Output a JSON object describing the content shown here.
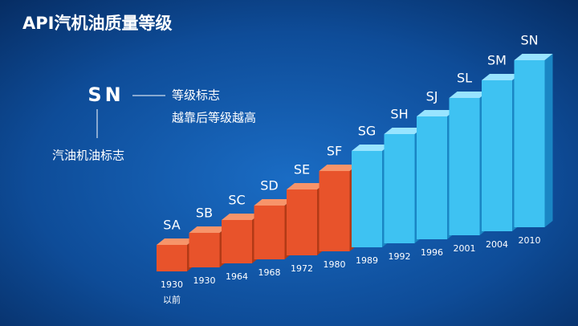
{
  "header": {
    "title": "API汽机油质量等级"
  },
  "legend": {
    "symbol": "SN",
    "grade_note_1": "等级标志",
    "grade_note_2": "越靠后等级越高",
    "type_note": "汽油机油标志"
  },
  "grades": [
    {
      "name": "SA",
      "year": "1930",
      "note": "以前"
    },
    {
      "name": "SB",
      "year": "1930"
    },
    {
      "name": "SC",
      "year": "1964"
    },
    {
      "name": "SD",
      "year": "1968"
    },
    {
      "name": "SE",
      "year": "1972"
    },
    {
      "name": "SF",
      "year": "1980"
    },
    {
      "name": "SG",
      "year": "1989"
    },
    {
      "name": "SH",
      "year": "1992"
    },
    {
      "name": "SJ",
      "year": "1996"
    },
    {
      "name": "SL",
      "year": "2001"
    },
    {
      "name": "SM",
      "year": "2004"
    },
    {
      "name": "SN",
      "year": "2010"
    }
  ]
}
